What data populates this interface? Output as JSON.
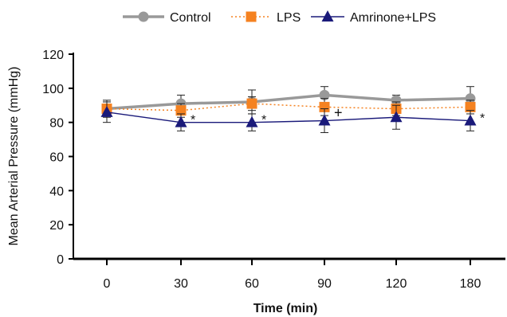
{
  "chart_data": {
    "type": "line",
    "xlabel": "Time (min)",
    "ylabel": "Mean Arterial Pressure (mmHg)",
    "categories": [
      "0",
      "30",
      "60",
      "90",
      "120",
      "180"
    ],
    "ylim": [
      0,
      120
    ],
    "yticks": [
      0,
      20,
      40,
      60,
      80,
      100,
      120
    ],
    "grid": false,
    "legend_position": "top",
    "series": [
      {
        "name": "Control",
        "values": [
          88,
          91,
          92,
          96,
          93,
          94
        ],
        "errors": [
          5,
          5,
          7,
          5,
          3,
          7
        ],
        "color": "#999999",
        "marker": "circle",
        "line_style": "solid"
      },
      {
        "name": "LPS",
        "values": [
          88,
          87,
          91,
          89,
          88,
          89
        ],
        "errors": [
          4,
          4,
          4,
          5,
          4,
          4
        ],
        "color": "#f58220",
        "marker": "square",
        "line_style": "dotted"
      },
      {
        "name": "Amrinone+LPS",
        "values": [
          86,
          80,
          80,
          81,
          83,
          81
        ],
        "errors": [
          6,
          5,
          5,
          7,
          7,
          6
        ],
        "color": "#1a1a7a",
        "marker": "triangle",
        "line_style": "solid"
      }
    ],
    "annotations": [
      {
        "category": "30",
        "text": "*"
      },
      {
        "category": "60",
        "text": "*"
      },
      {
        "category": "90",
        "text": "+"
      },
      {
        "category": "180",
        "text": "*"
      }
    ]
  }
}
